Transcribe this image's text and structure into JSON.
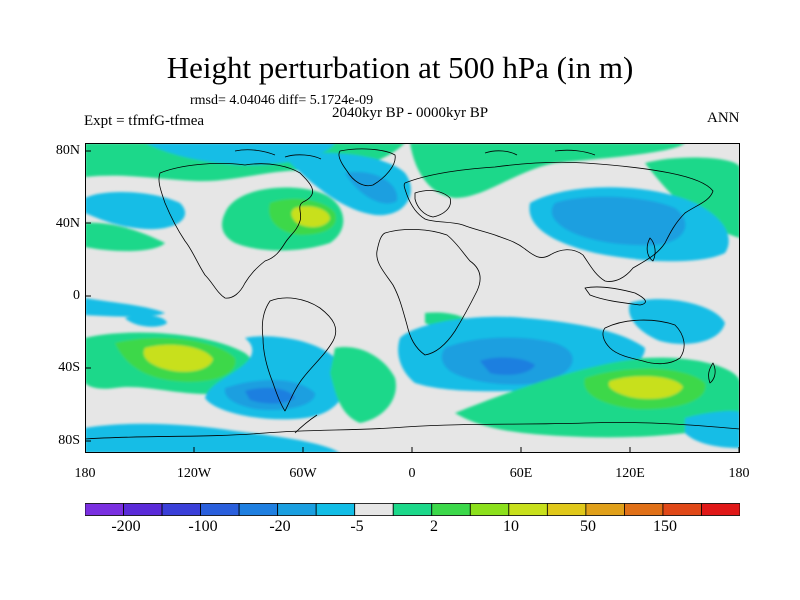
{
  "title": "Height perturbation at 500 hPa (in m)",
  "stats": "rmsd= 4.04046 diff= 5.1724e-09",
  "period": "2040kyr BP - 0000kyr BP",
  "experiment": "Expt = tfmfG-tfmea",
  "season": "ANN",
  "y_ticks": [
    "80N",
    "40N",
    "0",
    "40S",
    "80S"
  ],
  "x_ticks": [
    "180",
    "120W",
    "60W",
    "0",
    "60E",
    "120E",
    "180"
  ],
  "colorbar": {
    "labels": [
      "-200",
      "-100",
      "-20",
      "-5",
      "2",
      "10",
      "50",
      "150"
    ],
    "colors": [
      "#7a2fe0",
      "#5a2ad8",
      "#3a3fd8",
      "#2a5fdc",
      "#1f7fe0",
      "#1a9fe0",
      "#12bde6",
      "#e6e6e6",
      "#1cd88a",
      "#3cd84a",
      "#8ce01c",
      "#c8e01c",
      "#e0c81a",
      "#e0a01a",
      "#e07018",
      "#e04818",
      "#e01818"
    ]
  },
  "map_colors": {
    "background": "#e6e6e6",
    "light_blue": "#12bde6",
    "mid_blue": "#1a9fe0",
    "dark_blue": "#1f7fe0",
    "teal_green": "#1cd88a",
    "green": "#3cd84a",
    "yellow_green": "#c8e01c"
  }
}
